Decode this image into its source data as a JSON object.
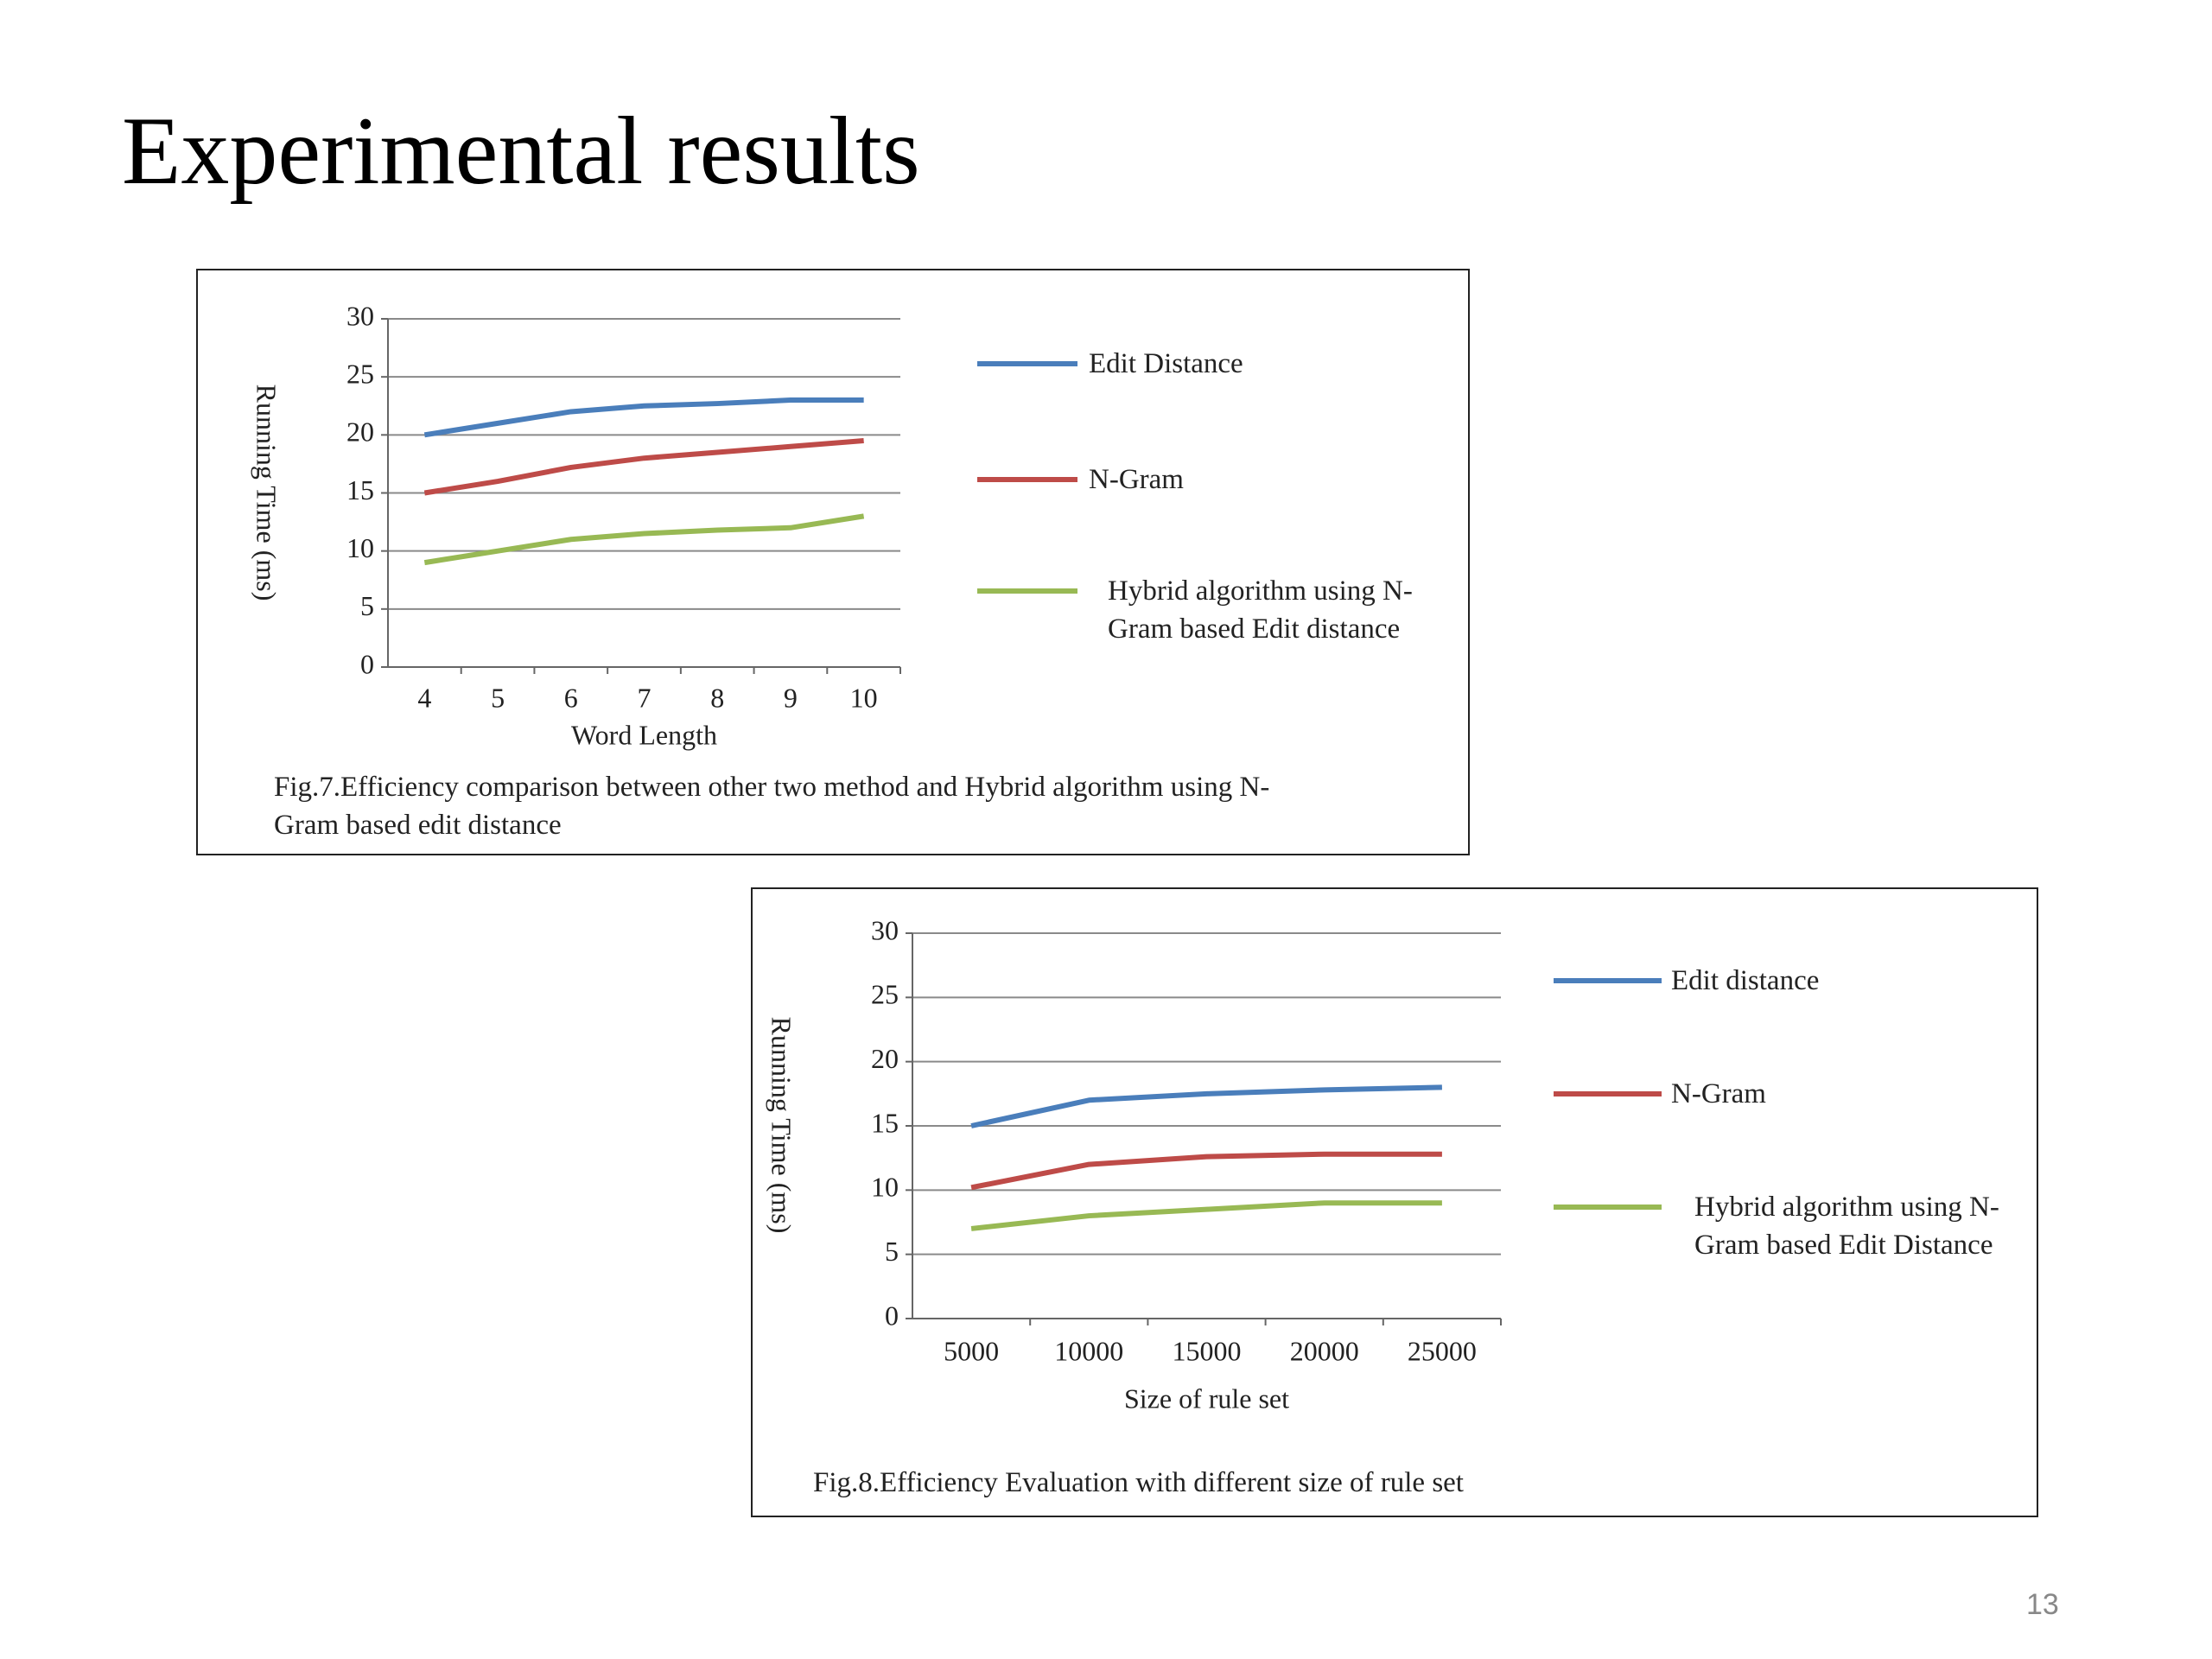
{
  "title": "Experimental results",
  "page_number": "13",
  "chart_data": [
    {
      "type": "line",
      "caption": "Fig.7.Efficiency comparison between other two method and Hybrid algorithm using N-Gram based edit distance",
      "x_label": "Word Length",
      "y_label": "Running Time (ms)",
      "categories": [
        "4",
        "5",
        "6",
        "7",
        "8",
        "9",
        "10"
      ],
      "series": [
        {
          "name": "Edit Distance",
          "color": "#4a7ebb",
          "marker": "diamond",
          "values": [
            20,
            21,
            22,
            22.5,
            22.7,
            23,
            23
          ]
        },
        {
          "name": "N-Gram",
          "color": "#be4b48",
          "marker": "square",
          "values": [
            15,
            16,
            17.2,
            18,
            18.5,
            19,
            19.5
          ]
        },
        {
          "name": "Hybrid algorithm using N-Gram based Edit distance",
          "color": "#98b954",
          "marker": "triangle",
          "values": [
            9,
            10,
            11,
            11.5,
            11.8,
            12,
            13
          ]
        }
      ],
      "ylim": [
        0,
        30
      ],
      "yticks": [
        0,
        5,
        10,
        15,
        20,
        25,
        30
      ],
      "grid": true
    },
    {
      "type": "line",
      "caption": "Fig.8.Efficiency Evaluation with different size of rule set",
      "x_label": "Size of rule set",
      "y_label": "Running Time (ms)",
      "categories": [
        "5000",
        "10000",
        "15000",
        "20000",
        "25000"
      ],
      "series": [
        {
          "name": "Edit distance",
          "color": "#4a7ebb",
          "marker": "diamond",
          "values": [
            15,
            17,
            17.5,
            17.8,
            18
          ]
        },
        {
          "name": "N-Gram",
          "color": "#be4b48",
          "marker": "square",
          "values": [
            10.2,
            12,
            12.6,
            12.8,
            12.8
          ]
        },
        {
          "name": "Hybrid algorithm using N-Gram based Edit Distance",
          "color": "#98b954",
          "marker": "triangle",
          "values": [
            7,
            8,
            8.5,
            9,
            9
          ]
        }
      ],
      "ylim": [
        0,
        30
      ],
      "yticks": [
        0,
        5,
        10,
        15,
        20,
        25,
        30
      ],
      "grid": true
    }
  ]
}
